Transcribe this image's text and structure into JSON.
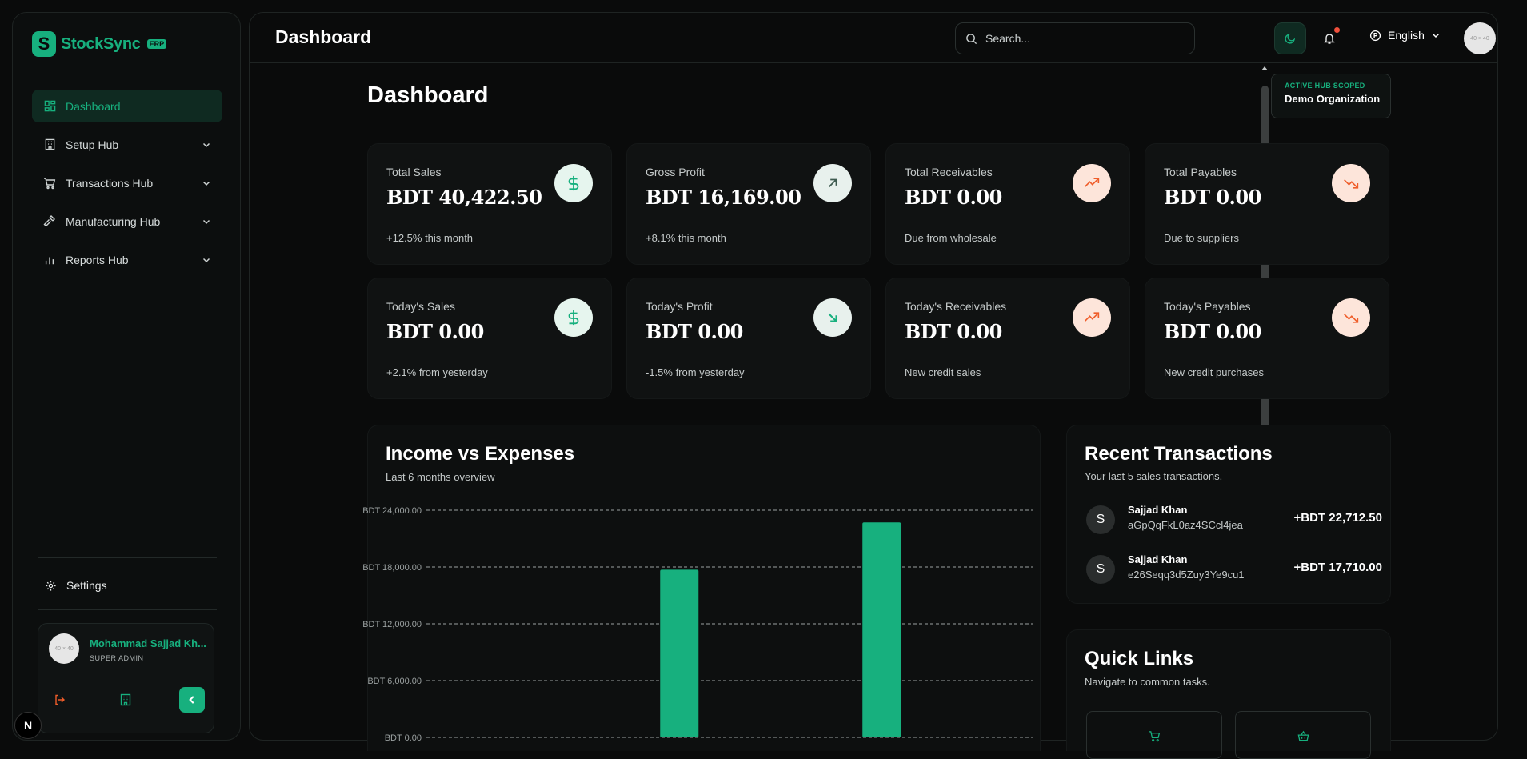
{
  "app": {
    "brand": "StockSync",
    "brand_badge": "ERP",
    "logo_letter": "S"
  },
  "sidebar": {
    "items": [
      {
        "label": "Dashboard",
        "icon": "grid-icon",
        "active": true
      },
      {
        "label": "Setup Hub",
        "icon": "building-icon"
      },
      {
        "label": "Transactions Hub",
        "icon": "cart-icon"
      },
      {
        "label": "Manufacturing Hub",
        "icon": "hammer-icon"
      },
      {
        "label": "Reports Hub",
        "icon": "bar-chart-icon"
      }
    ],
    "settings_label": "Settings",
    "user": {
      "name": "Mohammad Sajjad Kh...",
      "role": "SUPER ADMIN",
      "avatar_text": "40 × 40"
    },
    "dev_badge": "N"
  },
  "topbar": {
    "title": "Dashboard",
    "search_placeholder": "Search...",
    "language": "English",
    "avatar_text": "40 × 40"
  },
  "page": {
    "title": "Dashboard",
    "hub_badge_small": "ACTIVE HUB SCOPED",
    "hub_badge_org": "Demo Organization"
  },
  "stats": [
    {
      "label": "Total Sales",
      "value": "BDT 40,422.50",
      "sub": "+12.5% this month",
      "icon": "dollar-icon",
      "tone": "green"
    },
    {
      "label": "Gross Profit",
      "value": "BDT 16,169.00",
      "sub": "+8.1% this month",
      "icon": "arrow-up-right-icon",
      "tone": "greyg"
    },
    {
      "label": "Total Receivables",
      "value": "BDT 0.00",
      "sub": "Due from wholesale",
      "icon": "trending-up-icon",
      "tone": "orange"
    },
    {
      "label": "Total Payables",
      "value": "BDT 0.00",
      "sub": "Due to suppliers",
      "icon": "trending-down-icon",
      "tone": "orange"
    },
    {
      "label": "Today's Sales",
      "value": "BDT 0.00",
      "sub": "+2.1% from yesterday",
      "icon": "dollar-icon",
      "tone": "green"
    },
    {
      "label": "Today's Profit",
      "value": "BDT 0.00",
      "sub": "-1.5% from yesterday",
      "icon": "arrow-down-right-icon",
      "tone": "green"
    },
    {
      "label": "Today's Receivables",
      "value": "BDT 0.00",
      "sub": "New credit sales",
      "icon": "trending-up-icon",
      "tone": "orange"
    },
    {
      "label": "Today's Payables",
      "value": "BDT 0.00",
      "sub": "New credit purchases",
      "icon": "trending-down-icon",
      "tone": "orange"
    }
  ],
  "income_chart": {
    "title": "Income vs Expenses",
    "subtitle": "Last 6 months overview"
  },
  "chart_data": {
    "type": "bar",
    "title": "Income vs Expenses",
    "subtitle": "Last 6 months overview",
    "y_tick_labels": [
      "BDT 0.00",
      "BDT 6,000.00",
      "BDT 12,000.00",
      "BDT 18,000.00",
      "BDT 24,000.00"
    ],
    "y_ticks": [
      0,
      6000,
      12000,
      18000,
      24000
    ],
    "ylim": [
      0,
      24000
    ],
    "slots": 6,
    "bars": [
      {
        "slot": 2,
        "value": 17710.0
      },
      {
        "slot": 4,
        "value": 22712.5
      }
    ],
    "bar_color": "#17b07e",
    "grid": "dashed"
  },
  "recent": {
    "title": "Recent Transactions",
    "subtitle": "Your last 5 sales transactions.",
    "items": [
      {
        "initial": "S",
        "name": "Sajjad Khan",
        "id": "aGpQqFkL0az4SCcl4jea",
        "amount": "+BDT 22,712.50"
      },
      {
        "initial": "S",
        "name": "Sajjad Khan",
        "id": "e26Seqq3d5Zuy3Ye9cu1",
        "amount": "+BDT 17,710.00"
      }
    ]
  },
  "quick_links": {
    "title": "Quick Links",
    "subtitle": "Navigate to common tasks."
  },
  "colors": {
    "accent": "#17b07e",
    "warn": "#ef5d2a",
    "background": "#0a0b0b"
  }
}
